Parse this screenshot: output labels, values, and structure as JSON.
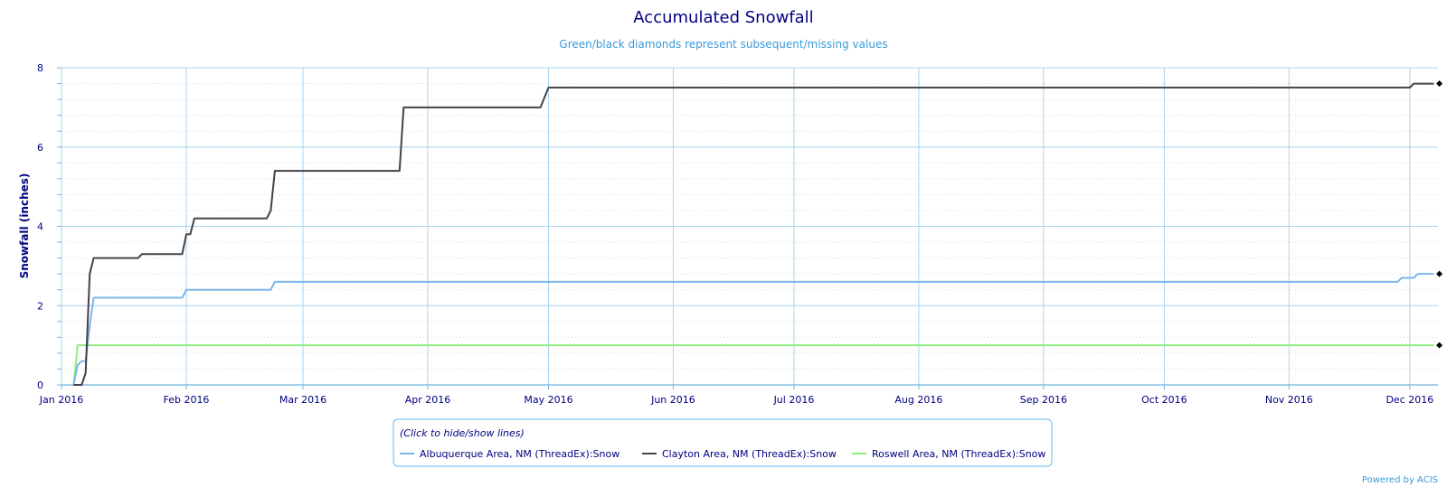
{
  "chart_data": {
    "type": "line",
    "title": "Accumulated Snowfall",
    "subtitle": "Green/black diamonds represent subsequent/missing values",
    "ylabel": "Snowfall (inches)",
    "xlabel": "",
    "ylim": [
      0,
      8
    ],
    "yticks": [
      0,
      2,
      4,
      6,
      8
    ],
    "xlim": [
      "2016-01-01",
      "2016-12-08"
    ],
    "xticks": [
      {
        "date": "2016-01-01",
        "label": "Jan 2016"
      },
      {
        "date": "2016-02-01",
        "label": "Feb 2016"
      },
      {
        "date": "2016-03-01",
        "label": "Mar 2016"
      },
      {
        "date": "2016-04-01",
        "label": "Apr 2016"
      },
      {
        "date": "2016-05-01",
        "label": "May 2016"
      },
      {
        "date": "2016-06-01",
        "label": "Jun 2016"
      },
      {
        "date": "2016-07-01",
        "label": "Jul 2016"
      },
      {
        "date": "2016-08-01",
        "label": "Aug 2016"
      },
      {
        "date": "2016-09-01",
        "label": "Sep 2016"
      },
      {
        "date": "2016-10-01",
        "label": "Oct 2016"
      },
      {
        "date": "2016-11-01",
        "label": "Nov 2016"
      },
      {
        "date": "2016-12-01",
        "label": "Dec 2016"
      }
    ],
    "grid": true,
    "legend_position": "bottom",
    "series": [
      {
        "name": "Albuquerque Area, NM (ThreadEx):Snow",
        "color": "#7cb5ec",
        "points": [
          [
            "2016-01-04",
            0
          ],
          [
            "2016-01-05",
            0.5
          ],
          [
            "2016-01-06",
            0.6
          ],
          [
            "2016-01-07",
            0.6
          ],
          [
            "2016-01-08",
            1.5
          ],
          [
            "2016-01-09",
            2.2
          ],
          [
            "2016-01-31",
            2.2
          ],
          [
            "2016-02-01",
            2.4
          ],
          [
            "2016-02-22",
            2.4
          ],
          [
            "2016-02-23",
            2.6
          ],
          [
            "2016-11-28",
            2.6
          ],
          [
            "2016-11-29",
            2.7
          ],
          [
            "2016-12-02",
            2.7
          ],
          [
            "2016-12-03",
            2.8
          ],
          [
            "2016-12-07",
            2.8
          ]
        ],
        "end_marker": 2.8
      },
      {
        "name": "Clayton Area, NM (ThreadEx):Snow",
        "color": "#434348",
        "points": [
          [
            "2016-01-04",
            0
          ],
          [
            "2016-01-06",
            0
          ],
          [
            "2016-01-07",
            0.3
          ],
          [
            "2016-01-08",
            2.8
          ],
          [
            "2016-01-09",
            3.2
          ],
          [
            "2016-01-20",
            3.2
          ],
          [
            "2016-01-21",
            3.3
          ],
          [
            "2016-01-31",
            3.3
          ],
          [
            "2016-02-01",
            3.8
          ],
          [
            "2016-02-02",
            3.8
          ],
          [
            "2016-02-03",
            4.2
          ],
          [
            "2016-02-21",
            4.2
          ],
          [
            "2016-02-22",
            4.4
          ],
          [
            "2016-02-23",
            5.4
          ],
          [
            "2016-03-25",
            5.4
          ],
          [
            "2016-03-26",
            7.0
          ],
          [
            "2016-04-29",
            7.0
          ],
          [
            "2016-05-01",
            7.5
          ],
          [
            "2016-12-01",
            7.5
          ],
          [
            "2016-12-02",
            7.6
          ],
          [
            "2016-12-07",
            7.6
          ]
        ],
        "end_marker": 7.6
      },
      {
        "name": "Roswell Area, NM (ThreadEx):Snow",
        "color": "#90ed7d",
        "points": [
          [
            "2016-01-04",
            0
          ],
          [
            "2016-01-05",
            1.0
          ],
          [
            "2016-12-07",
            1.0
          ]
        ],
        "end_marker": 1.0
      }
    ]
  },
  "legend": {
    "caption": "(Click to hide/show lines)"
  },
  "credit": "Powered by ACIS"
}
